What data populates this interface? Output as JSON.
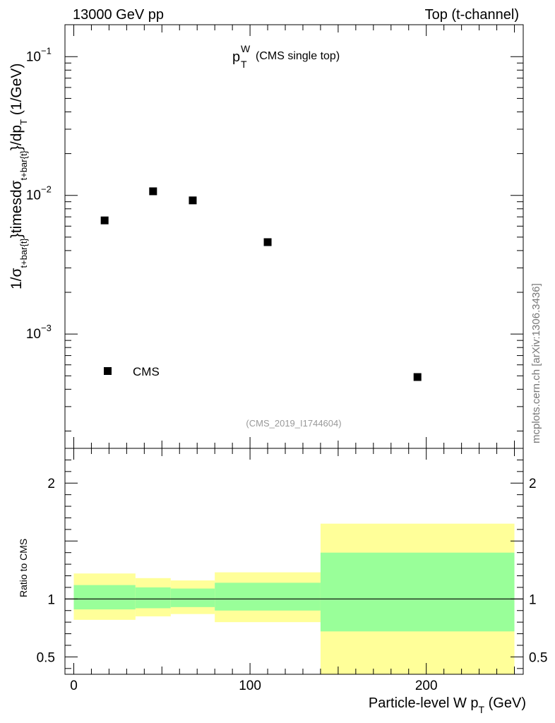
{
  "header": {
    "left": "13000 GeV pp",
    "right": "Top (t-channel)"
  },
  "plot_title": {
    "main": "p",
    "sup": "W",
    "sub": "T",
    "rest": "(CMS single top)"
  },
  "watermark": "(CMS_2019_I1744604)",
  "side_label": "mcplots.cern.ch [arXiv:1306.3436]",
  "chart_data": [
    {
      "type": "scatter",
      "title": "p_T^W (CMS single top)",
      "xlabel": "Particle-level W p_T (GeV)",
      "ylabel": "1/σ_{t+bar{t}}timesdσ_{t+bar{t}}/dp_T (1/GeV)",
      "yscale": "log",
      "xlim": [
        -5,
        255
      ],
      "ylim": [
        0.00015,
        0.17
      ],
      "series": [
        {
          "name": "CMS",
          "marker": "square",
          "x": [
            17.5,
            45,
            67.5,
            110,
            195
          ],
          "y": [
            0.0066,
            0.0107,
            0.0092,
            0.0046,
            0.00049
          ]
        }
      ],
      "legend": [
        {
          "label": "CMS",
          "marker": "square"
        }
      ],
      "y_tick_labels": [
        "10^-1",
        "10^-2",
        "10^-3"
      ]
    },
    {
      "type": "area",
      "title": "Ratio to CMS",
      "xlabel": "Particle-level W p_T (GeV)",
      "ylabel": "Ratio to CMS",
      "xlim": [
        -5,
        255
      ],
      "ylim": [
        0.35,
        2.3
      ],
      "reference_line": 1.0,
      "y_tick_labels": [
        "0.5",
        "1",
        "2"
      ],
      "x_tick_labels": [
        "0",
        "100",
        "200"
      ],
      "bins": [
        {
          "xlo": 0,
          "xhi": 35,
          "inner": [
            0.91,
            1.12
          ],
          "outer": [
            0.82,
            1.22
          ]
        },
        {
          "xlo": 35,
          "xhi": 55,
          "inner": [
            0.92,
            1.1
          ],
          "outer": [
            0.85,
            1.18
          ]
        },
        {
          "xlo": 55,
          "xhi": 80,
          "inner": [
            0.93,
            1.09
          ],
          "outer": [
            0.87,
            1.16
          ]
        },
        {
          "xlo": 80,
          "xhi": 140,
          "inner": [
            0.9,
            1.14
          ],
          "outer": [
            0.8,
            1.23
          ]
        },
        {
          "xlo": 140,
          "xhi": 250,
          "inner": [
            0.72,
            1.4
          ],
          "outer": [
            0.35,
            1.65
          ]
        }
      ],
      "colors": {
        "inner": "#99ff99",
        "outer": "#ffff99",
        "line": "#000000"
      }
    }
  ]
}
